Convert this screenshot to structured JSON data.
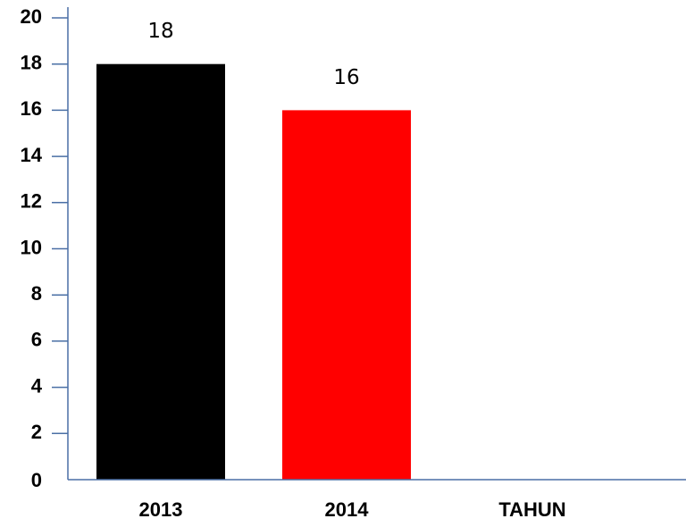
{
  "chart_data": {
    "type": "bar",
    "categories": [
      "2013",
      "2014",
      "TAHUN"
    ],
    "values": [
      18,
      16,
      null
    ],
    "data_labels": [
      "18",
      "16",
      ""
    ],
    "bar_colors": [
      "#000000",
      "#ff0000",
      "#000000"
    ],
    "axis_color": "#4a6fa5",
    "yticks": [
      "0",
      "2",
      "4",
      "6",
      "8",
      "10",
      "12",
      "14",
      "16",
      "18",
      "20"
    ],
    "ylim": [
      0,
      20
    ],
    "title": "",
    "xlabel": "",
    "ylabel": "",
    "grid": false,
    "legend": "none"
  }
}
